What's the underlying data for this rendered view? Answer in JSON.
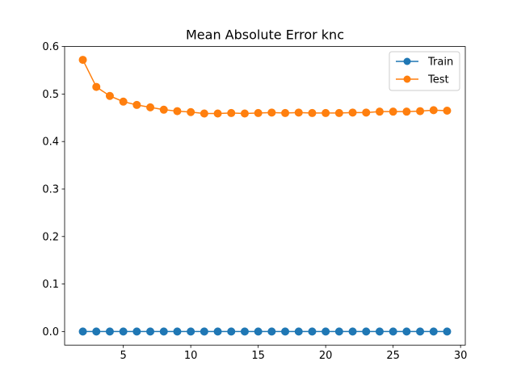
{
  "chart_data": {
    "type": "line",
    "title": "Mean Absolute Error knc",
    "xlabel": "",
    "ylabel": "",
    "xlim": [
      0.65,
      30.35
    ],
    "ylim": [
      -0.0286,
      0.6
    ],
    "xticks": [
      5,
      10,
      15,
      20,
      25,
      30
    ],
    "yticks": [
      0.0,
      0.1,
      0.2,
      0.3,
      0.4,
      0.5,
      0.6
    ],
    "xtick_labels": [
      "5",
      "10",
      "15",
      "20",
      "25",
      "30"
    ],
    "ytick_labels": [
      "0.0",
      "0.1",
      "0.2",
      "0.3",
      "0.4",
      "0.5",
      "0.6"
    ],
    "grid": false,
    "legend_position": "top-right",
    "x": [
      2,
      3,
      4,
      5,
      6,
      7,
      8,
      9,
      10,
      11,
      12,
      13,
      14,
      15,
      16,
      17,
      18,
      19,
      20,
      21,
      22,
      23,
      24,
      25,
      26,
      27,
      28,
      29
    ],
    "series": [
      {
        "name": "Train",
        "color": "#1f77b4",
        "marker": "circle",
        "values": [
          0,
          0,
          0,
          0,
          0,
          0,
          0,
          0,
          0,
          0,
          0,
          0,
          0,
          0,
          0,
          0,
          0,
          0,
          0,
          0,
          0,
          0,
          0,
          0,
          0,
          0,
          0,
          0
        ]
      },
      {
        "name": "Test",
        "color": "#ff7f0e",
        "marker": "circle",
        "values": [
          0.572,
          0.515,
          0.496,
          0.484,
          0.477,
          0.472,
          0.467,
          0.464,
          0.462,
          0.459,
          0.459,
          0.46,
          0.459,
          0.46,
          0.461,
          0.46,
          0.461,
          0.46,
          0.46,
          0.46,
          0.461,
          0.461,
          0.463,
          0.463,
          0.463,
          0.464,
          0.466,
          0.465
        ]
      }
    ]
  }
}
